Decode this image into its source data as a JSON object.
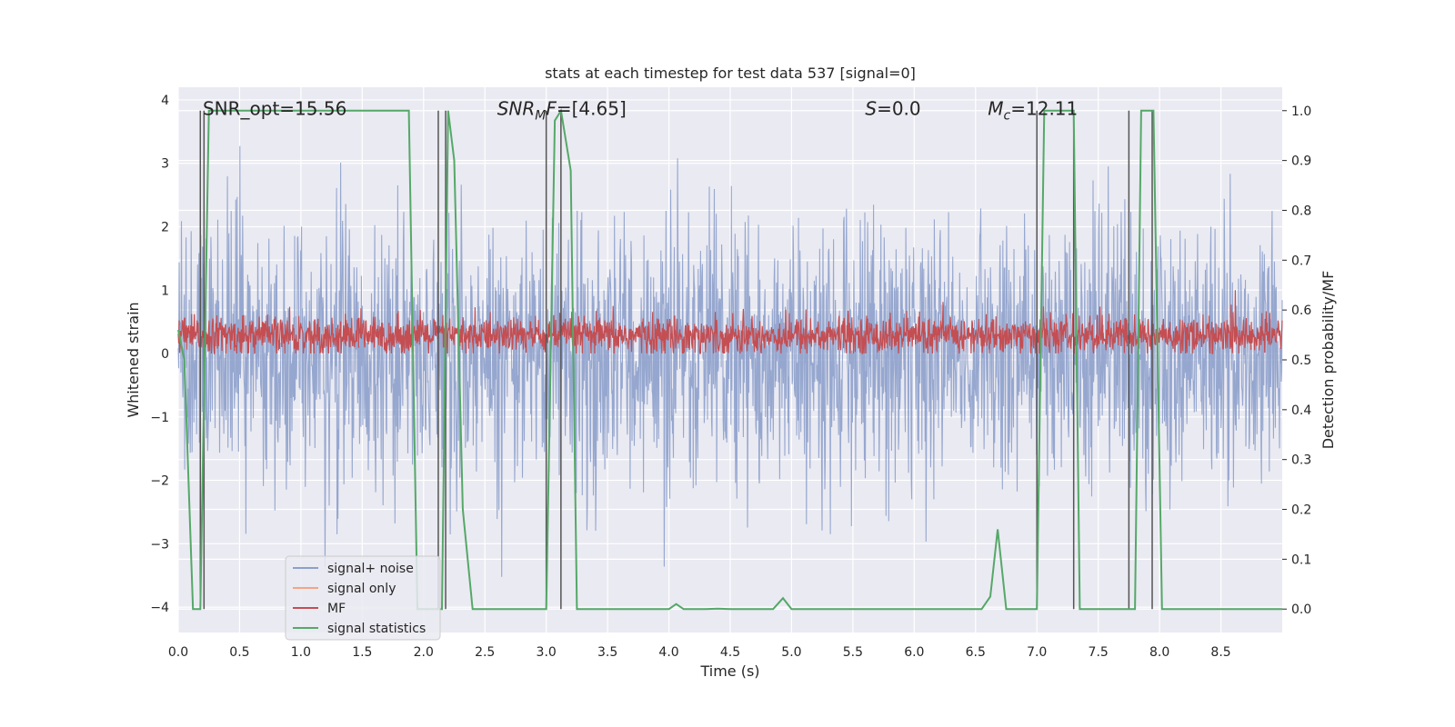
{
  "chart_data": {
    "type": "line",
    "title": "stats at each timestep for test data 537 [signal=0]",
    "xlabel": "Time (s)",
    "ylabel": "Whitened strain",
    "ylabel_right": "Detection probability/MF",
    "xlim": [
      0.0,
      9.0
    ],
    "ylim": [
      -4.4,
      4.2
    ],
    "ylim_right": [
      -0.047,
      1.047
    ],
    "x_ticks": [
      "0.0",
      "0.5",
      "1.0",
      "1.5",
      "2.0",
      "2.5",
      "3.0",
      "3.5",
      "4.0",
      "4.5",
      "5.0",
      "5.5",
      "6.0",
      "6.5",
      "7.0",
      "7.5",
      "8.0",
      "8.5"
    ],
    "y_ticks": [
      "−4",
      "−3",
      "−2",
      "−1",
      "0",
      "1",
      "2",
      "3",
      "4"
    ],
    "y_right_ticks": [
      "0.0",
      "0.1",
      "0.2",
      "0.3",
      "0.4",
      "0.5",
      "0.6",
      "0.7",
      "0.8",
      "0.9",
      "1.0"
    ],
    "grid": true,
    "legend_position": "lower-left",
    "annotations": [
      {
        "text": "SNR_opt=15.56",
        "x": 0.2,
        "y": 3.88
      },
      {
        "text": "SNR_MF=[4.65]",
        "x": 2.6,
        "y": 3.88
      },
      {
        "text": "S=0.0",
        "x": 5.6,
        "y": 3.88
      },
      {
        "text": "M_c=12.11",
        "x": 6.6,
        "y": 3.88
      }
    ],
    "series": [
      {
        "name": "signal+ noise",
        "color": "#8da0cb",
        "kind": "noise",
        "approx_range": [
          -3.6,
          3.8
        ],
        "std": 1.0
      },
      {
        "name": "signal only",
        "color": "#f4a582",
        "kind": "flat",
        "values_note": "",
        "y": 0.0
      },
      {
        "name": "MF",
        "color": "#c44e52",
        "kind": "mf",
        "approx_range": [
          0.0,
          0.75
        ],
        "mean": 0.28
      },
      {
        "name": "signal statistics",
        "color": "#55a868",
        "axis": "right",
        "x": [
          0.0,
          0.05,
          0.12,
          0.18,
          0.25,
          0.26,
          1.0,
          1.5,
          1.88,
          1.95,
          2.05,
          2.15,
          2.2,
          2.25,
          2.32,
          2.4,
          2.5,
          3.0,
          3.07,
          3.12,
          3.2,
          3.25,
          3.5,
          4.0,
          4.06,
          4.12,
          4.3,
          4.4,
          4.5,
          4.85,
          4.93,
          5.0,
          5.5,
          6.0,
          6.55,
          6.62,
          6.68,
          6.75,
          6.8,
          7.0,
          7.06,
          7.1,
          7.3,
          7.35,
          7.45,
          7.8,
          7.85,
          7.9,
          7.95,
          8.02,
          8.1,
          8.5,
          9.0
        ],
        "y": [
          0.56,
          0.5,
          0.0,
          0.0,
          1.0,
          1.0,
          1.0,
          1.0,
          1.0,
          0.0,
          0.0,
          0.0,
          1.0,
          0.9,
          0.2,
          0.0,
          0.0,
          0.0,
          0.98,
          1.0,
          0.88,
          0.0,
          0.0,
          0.0,
          0.01,
          0.0,
          0.0,
          0.001,
          0.0,
          0.0,
          0.022,
          0.0,
          0.0,
          0.0,
          0.0,
          0.025,
          0.16,
          0.0,
          0.0,
          0.0,
          1.0,
          1.0,
          1.0,
          0.0,
          0.0,
          0.0,
          1.0,
          1.0,
          1.0,
          0.0,
          0.0,
          0.0,
          0.0
        ]
      }
    ],
    "vertical_markers": [
      0.18,
      0.21,
      2.12,
      2.18,
      3.0,
      3.12,
      7.0,
      7.3,
      7.75,
      7.94
    ],
    "vertical_marker_color": "#555555"
  }
}
